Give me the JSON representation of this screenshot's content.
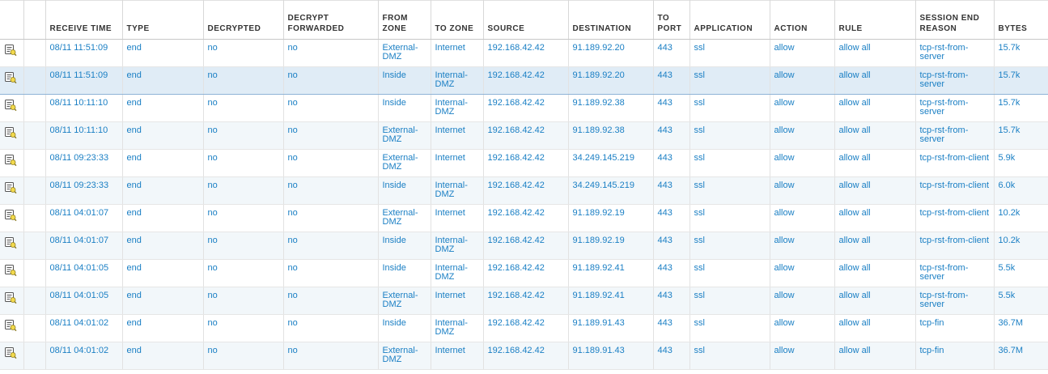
{
  "columns": [
    {
      "key": "icon",
      "label": ""
    },
    {
      "key": "check",
      "label": ""
    },
    {
      "key": "receive_time",
      "label": "RECEIVE TIME"
    },
    {
      "key": "type",
      "label": "TYPE"
    },
    {
      "key": "decrypted",
      "label": "DECRYPTED"
    },
    {
      "key": "decrypt_forwarded",
      "label": "DECRYPT FORWARDED"
    },
    {
      "key": "from_zone",
      "label": "FROM ZONE"
    },
    {
      "key": "to_zone",
      "label": "TO ZONE"
    },
    {
      "key": "source",
      "label": "SOURCE"
    },
    {
      "key": "destination",
      "label": "DESTINATION"
    },
    {
      "key": "to_port",
      "label": "TO PORT"
    },
    {
      "key": "application",
      "label": "APPLICATION"
    },
    {
      "key": "action",
      "label": "ACTION"
    },
    {
      "key": "rule",
      "label": "RULE"
    },
    {
      "key": "session_end_reason",
      "label": "SESSION END REASON"
    },
    {
      "key": "bytes",
      "label": "BYTES"
    }
  ],
  "icons": {
    "row_detail": "log-detail-icon"
  },
  "colors": {
    "link": "#1a7fc4",
    "header_text": "#333333",
    "alt_row": "#f2f7fa",
    "selected_row": "#e0ecf6"
  },
  "rows": [
    {
      "receive_time": "08/11 11:51:09",
      "type": "end",
      "decrypted": "no",
      "decrypt_forwarded": "no",
      "from_zone": "External-DMZ",
      "to_zone": "Internet",
      "source": "192.168.42.42",
      "destination": "91.189.92.20",
      "to_port": "443",
      "application": "ssl",
      "action": "allow",
      "rule": "allow all",
      "session_end_reason": "tcp-rst-from-server",
      "bytes": "15.7k"
    },
    {
      "receive_time": "08/11 11:51:09",
      "type": "end",
      "decrypted": "no",
      "decrypt_forwarded": "no",
      "from_zone": "Inside",
      "to_zone": "Internal-DMZ",
      "source": "192.168.42.42",
      "destination": "91.189.92.20",
      "to_port": "443",
      "application": "ssl",
      "action": "allow",
      "rule": "allow all",
      "session_end_reason": "tcp-rst-from-server",
      "bytes": "15.7k"
    },
    {
      "receive_time": "08/11 10:11:10",
      "type": "end",
      "decrypted": "no",
      "decrypt_forwarded": "no",
      "from_zone": "Inside",
      "to_zone": "Internal-DMZ",
      "source": "192.168.42.42",
      "destination": "91.189.92.38",
      "to_port": "443",
      "application": "ssl",
      "action": "allow",
      "rule": "allow all",
      "session_end_reason": "tcp-rst-from-server",
      "bytes": "15.7k"
    },
    {
      "receive_time": "08/11 10:11:10",
      "type": "end",
      "decrypted": "no",
      "decrypt_forwarded": "no",
      "from_zone": "External-DMZ",
      "to_zone": "Internet",
      "source": "192.168.42.42",
      "destination": "91.189.92.38",
      "to_port": "443",
      "application": "ssl",
      "action": "allow",
      "rule": "allow all",
      "session_end_reason": "tcp-rst-from-server",
      "bytes": "15.7k"
    },
    {
      "receive_time": "08/11 09:23:33",
      "type": "end",
      "decrypted": "no",
      "decrypt_forwarded": "no",
      "from_zone": "External-DMZ",
      "to_zone": "Internet",
      "source": "192.168.42.42",
      "destination": "34.249.145.219",
      "to_port": "443",
      "application": "ssl",
      "action": "allow",
      "rule": "allow all",
      "session_end_reason": "tcp-rst-from-client",
      "bytes": "5.9k"
    },
    {
      "receive_time": "08/11 09:23:33",
      "type": "end",
      "decrypted": "no",
      "decrypt_forwarded": "no",
      "from_zone": "Inside",
      "to_zone": "Internal-DMZ",
      "source": "192.168.42.42",
      "destination": "34.249.145.219",
      "to_port": "443",
      "application": "ssl",
      "action": "allow",
      "rule": "allow all",
      "session_end_reason": "tcp-rst-from-client",
      "bytes": "6.0k"
    },
    {
      "receive_time": "08/11 04:01:07",
      "type": "end",
      "decrypted": "no",
      "decrypt_forwarded": "no",
      "from_zone": "External-DMZ",
      "to_zone": "Internet",
      "source": "192.168.42.42",
      "destination": "91.189.92.19",
      "to_port": "443",
      "application": "ssl",
      "action": "allow",
      "rule": "allow all",
      "session_end_reason": "tcp-rst-from-client",
      "bytes": "10.2k"
    },
    {
      "receive_time": "08/11 04:01:07",
      "type": "end",
      "decrypted": "no",
      "decrypt_forwarded": "no",
      "from_zone": "Inside",
      "to_zone": "Internal-DMZ",
      "source": "192.168.42.42",
      "destination": "91.189.92.19",
      "to_port": "443",
      "application": "ssl",
      "action": "allow",
      "rule": "allow all",
      "session_end_reason": "tcp-rst-from-client",
      "bytes": "10.2k"
    },
    {
      "receive_time": "08/11 04:01:05",
      "type": "end",
      "decrypted": "no",
      "decrypt_forwarded": "no",
      "from_zone": "Inside",
      "to_zone": "Internal-DMZ",
      "source": "192.168.42.42",
      "destination": "91.189.92.41",
      "to_port": "443",
      "application": "ssl",
      "action": "allow",
      "rule": "allow all",
      "session_end_reason": "tcp-rst-from-server",
      "bytes": "5.5k"
    },
    {
      "receive_time": "08/11 04:01:05",
      "type": "end",
      "decrypted": "no",
      "decrypt_forwarded": "no",
      "from_zone": "External-DMZ",
      "to_zone": "Internet",
      "source": "192.168.42.42",
      "destination": "91.189.92.41",
      "to_port": "443",
      "application": "ssl",
      "action": "allow",
      "rule": "allow all",
      "session_end_reason": "tcp-rst-from-server",
      "bytes": "5.5k"
    },
    {
      "receive_time": "08/11 04:01:02",
      "type": "end",
      "decrypted": "no",
      "decrypt_forwarded": "no",
      "from_zone": "Inside",
      "to_zone": "Internal-DMZ",
      "source": "192.168.42.42",
      "destination": "91.189.91.43",
      "to_port": "443",
      "application": "ssl",
      "action": "allow",
      "rule": "allow all",
      "session_end_reason": "tcp-fin",
      "bytes": "36.7M"
    },
    {
      "receive_time": "08/11 04:01:02",
      "type": "end",
      "decrypted": "no",
      "decrypt_forwarded": "no",
      "from_zone": "External-DMZ",
      "to_zone": "Internet",
      "source": "192.168.42.42",
      "destination": "91.189.91.43",
      "to_port": "443",
      "application": "ssl",
      "action": "allow",
      "rule": "allow all",
      "session_end_reason": "tcp-fin",
      "bytes": "36.7M"
    }
  ]
}
